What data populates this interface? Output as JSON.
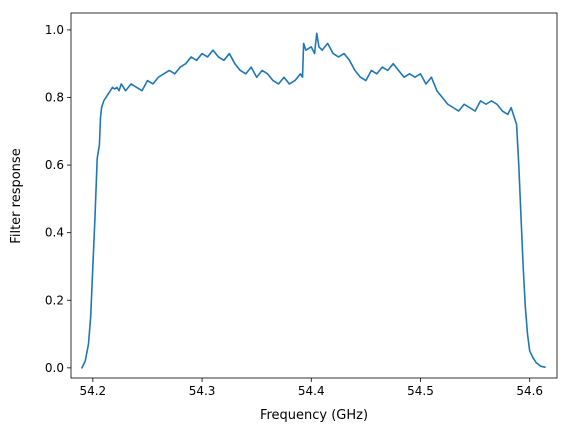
{
  "chart_data": {
    "type": "line",
    "title": "",
    "xlabel": "Frequency (GHz)",
    "ylabel": "Filter response",
    "xlim": [
      54.18,
      54.625
    ],
    "ylim": [
      -0.03,
      1.05
    ],
    "x_ticks": [
      54.2,
      54.3,
      54.4,
      54.5,
      54.6
    ],
    "x_tick_labels": [
      "54.2",
      "54.3",
      "54.4",
      "54.5",
      "54.6"
    ],
    "y_ticks": [
      0.0,
      0.2,
      0.4,
      0.6,
      0.8,
      1.0
    ],
    "y_tick_labels": [
      "0.0",
      "0.2",
      "0.4",
      "0.6",
      "0.8",
      "1.0"
    ],
    "grid": false,
    "line_color": "#1f77b4",
    "series": [
      {
        "x": [
          54.19,
          54.193,
          54.196,
          54.198,
          54.2,
          54.202,
          54.204,
          54.206,
          54.207,
          54.208,
          54.21,
          54.212,
          54.214,
          54.216,
          54.218,
          54.22,
          54.222,
          54.224,
          54.226,
          54.228,
          54.23,
          54.235,
          54.24,
          54.245,
          54.25,
          54.255,
          54.26,
          54.265,
          54.27,
          54.275,
          54.28,
          54.285,
          54.29,
          54.295,
          54.3,
          54.305,
          54.31,
          54.315,
          54.32,
          54.325,
          54.33,
          54.335,
          54.34,
          54.345,
          54.35,
          54.355,
          54.36,
          54.365,
          54.37,
          54.375,
          54.38,
          54.385,
          54.39,
          54.392,
          54.393,
          54.395,
          54.4,
          54.403,
          54.405,
          54.407,
          54.41,
          54.415,
          54.42,
          54.425,
          54.43,
          54.435,
          54.44,
          54.445,
          54.45,
          54.455,
          54.46,
          54.465,
          54.47,
          54.475,
          54.48,
          54.485,
          54.49,
          54.495,
          54.5,
          54.505,
          54.51,
          54.515,
          54.52,
          54.525,
          54.53,
          54.535,
          54.54,
          54.545,
          54.55,
          54.555,
          54.56,
          54.565,
          54.57,
          54.575,
          54.58,
          54.583,
          54.586,
          54.588,
          54.59,
          54.592,
          54.594,
          54.596,
          54.598,
          54.6,
          54.603,
          54.606,
          54.61,
          54.614
        ],
        "y": [
          0.0,
          0.02,
          0.07,
          0.15,
          0.3,
          0.45,
          0.62,
          0.66,
          0.74,
          0.77,
          0.79,
          0.8,
          0.81,
          0.82,
          0.83,
          0.825,
          0.83,
          0.82,
          0.84,
          0.83,
          0.82,
          0.84,
          0.83,
          0.82,
          0.85,
          0.84,
          0.86,
          0.87,
          0.88,
          0.87,
          0.89,
          0.9,
          0.92,
          0.91,
          0.93,
          0.92,
          0.94,
          0.92,
          0.91,
          0.93,
          0.9,
          0.88,
          0.87,
          0.89,
          0.86,
          0.88,
          0.87,
          0.85,
          0.84,
          0.86,
          0.84,
          0.85,
          0.87,
          0.86,
          0.96,
          0.94,
          0.95,
          0.93,
          0.99,
          0.95,
          0.94,
          0.96,
          0.93,
          0.92,
          0.93,
          0.91,
          0.88,
          0.86,
          0.85,
          0.88,
          0.87,
          0.89,
          0.88,
          0.9,
          0.88,
          0.86,
          0.87,
          0.86,
          0.87,
          0.84,
          0.86,
          0.82,
          0.8,
          0.78,
          0.77,
          0.76,
          0.78,
          0.77,
          0.76,
          0.79,
          0.78,
          0.79,
          0.78,
          0.76,
          0.75,
          0.77,
          0.74,
          0.72,
          0.6,
          0.45,
          0.3,
          0.18,
          0.1,
          0.05,
          0.03,
          0.015,
          0.005,
          0.002
        ]
      }
    ]
  }
}
